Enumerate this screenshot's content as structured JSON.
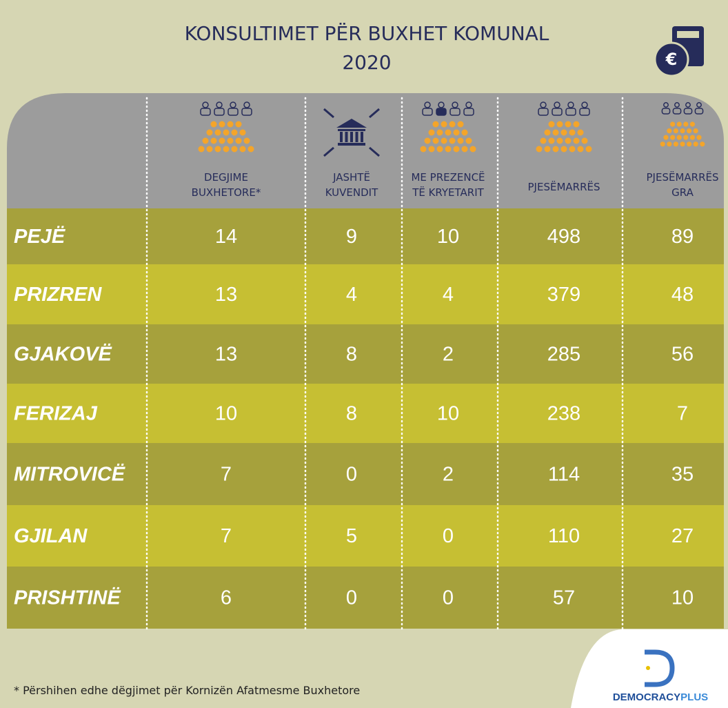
{
  "title": [
    "KONSULTIMET PËR BUXHET KOMUNAL",
    "2020"
  ],
  "badge": "€",
  "table": {
    "columns": [
      [
        "DEGJIME",
        "BUXHETORE*"
      ],
      [
        "JASHTË",
        "KUVENDIT"
      ],
      [
        "ME PREZENCË",
        "TË KRYETARIT"
      ],
      [
        "PJESËMARRËS"
      ],
      [
        "PJESËMARRËS",
        "GRA"
      ]
    ],
    "rows": [
      [
        "PEJË",
        14,
        9,
        10,
        498,
        89
      ],
      [
        "PRIZREN",
        13,
        4,
        4,
        379,
        48
      ],
      [
        "GJAKOVË",
        13,
        8,
        2,
        285,
        56
      ],
      [
        "FERIZAJ",
        10,
        8,
        10,
        238,
        7
      ],
      [
        "MITROVICË",
        7,
        0,
        2,
        114,
        35
      ],
      [
        "GJILAN",
        7,
        5,
        0,
        110,
        27
      ],
      [
        "PRISHTINË",
        6,
        0,
        0,
        57,
        10
      ]
    ]
  },
  "footnote": "* Përshihen edhe dëgjimet për Kornizën Afatmesme Buxhetore",
  "logo": [
    "DEMOCRACY",
    "PLUS"
  ]
}
